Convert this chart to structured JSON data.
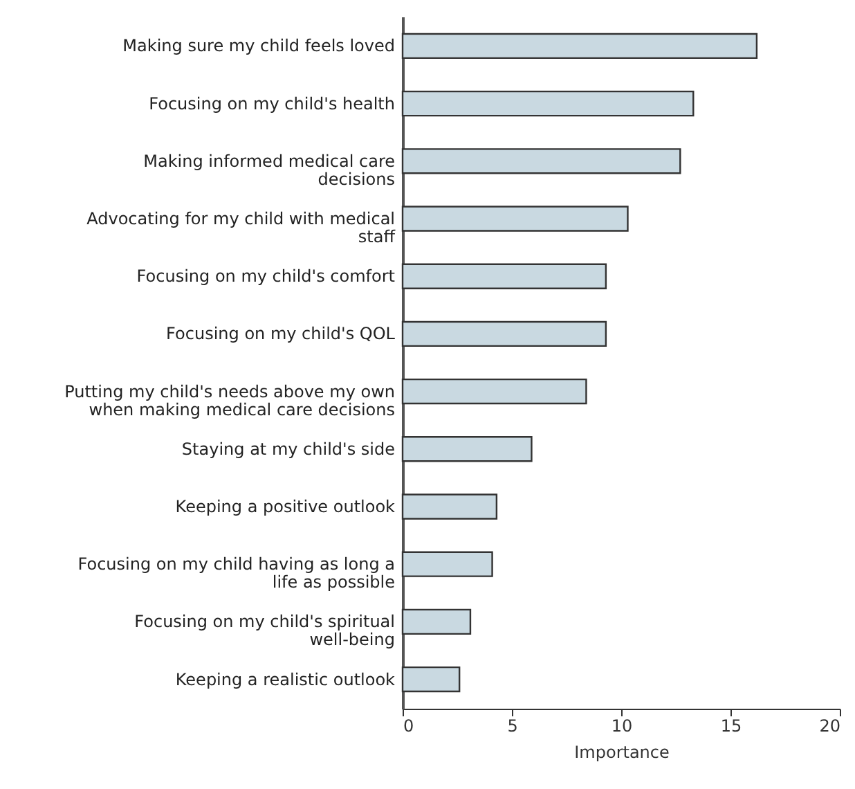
{
  "chart_data": {
    "type": "bar",
    "orientation": "horizontal",
    "xlabel": "Importance",
    "categories": [
      "Making sure my child feels loved",
      "Focusing on my child's health",
      "Making informed medical care decisions",
      "Advocating for my child with medical staff",
      "Focusing on my child's comfort",
      "Focusing on my child's QOL",
      "Putting my child's needs above my own when making medical care decisions",
      "Staying at my child's side",
      "Keeping a positive outlook",
      "Focusing on my child having as long a life as possible",
      "Focusing on my child's spiritual well-being",
      "Keeping a realistic outlook"
    ],
    "values": [
      16.2,
      13.3,
      12.7,
      10.3,
      9.3,
      9.3,
      8.4,
      5.9,
      4.3,
      4.1,
      3.1,
      2.6
    ],
    "color": "#c9d9e1",
    "xlim": [
      0,
      20
    ],
    "xticks": [
      0,
      5,
      10,
      15,
      20
    ],
    "grid": false
  }
}
